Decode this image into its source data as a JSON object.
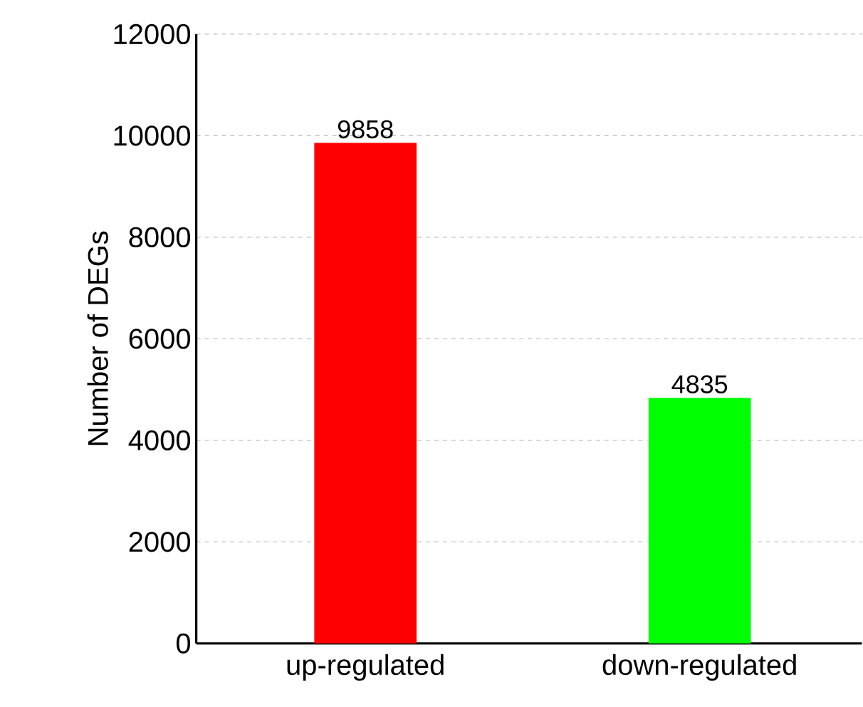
{
  "chart_data": {
    "type": "bar",
    "ylabel": "Number of DEGs",
    "categories": [
      "up-regulated",
      "down-regulated"
    ],
    "values": [
      9858,
      4835
    ],
    "colors": [
      "#ff0000",
      "#00ff00"
    ],
    "ylim": [
      0,
      12000
    ],
    "yticks": [
      0,
      2000,
      4000,
      6000,
      8000,
      10000,
      12000
    ],
    "grid": "y",
    "data_labels": true
  }
}
